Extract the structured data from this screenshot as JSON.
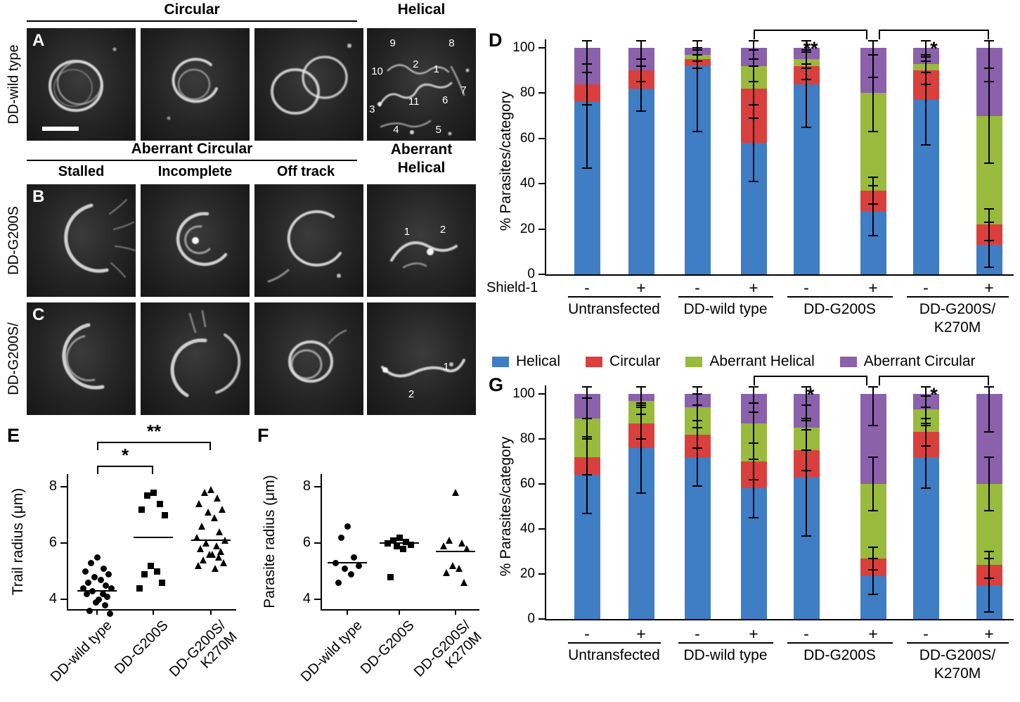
{
  "micrographs": {
    "headers": {
      "circular": "Circular",
      "helical": "Helical",
      "aberrant_circular": "Aberrant Circular",
      "aberrant_helical": "Aberrant\nHelical",
      "stalled": "Stalled",
      "incomplete": "Incomplete",
      "off_track": "Off track"
    },
    "rows": [
      {
        "panel_label": "A",
        "row_label": "DD-wild type",
        "trail_numbers": [
          {
            "n": "9",
            "x": 21,
            "y": 8
          },
          {
            "n": "2",
            "x": 42,
            "y": 27
          },
          {
            "n": "1",
            "x": 61,
            "y": 31
          },
          {
            "n": "8",
            "x": 75,
            "y": 8
          },
          {
            "n": "10",
            "x": 4,
            "y": 33
          },
          {
            "n": "7",
            "x": 86,
            "y": 50
          },
          {
            "n": "3",
            "x": 2,
            "y": 67
          },
          {
            "n": "11",
            "x": 38,
            "y": 60
          },
          {
            "n": "6",
            "x": 69,
            "y": 59
          },
          {
            "n": "4",
            "x": 24,
            "y": 85
          },
          {
            "n": "5",
            "x": 63,
            "y": 85
          }
        ]
      },
      {
        "panel_label": "B",
        "row_label": "DD-G200S",
        "trail_numbers": [
          {
            "n": "1",
            "x": 34,
            "y": 37
          },
          {
            "n": "2",
            "x": 67,
            "y": 35
          }
        ]
      },
      {
        "panel_label": "C",
        "row_label": "DD-G200S/",
        "trail_numbers": [
          {
            "n": "1",
            "x": 70,
            "y": 52
          },
          {
            "n": "2",
            "x": 38,
            "y": 76
          }
        ]
      }
    ]
  },
  "legend": {
    "items": [
      {
        "label": "Helical",
        "color": "#3f7dc4"
      },
      {
        "label": "Circular",
        "color": "#d9403d"
      },
      {
        "label": "Aberrant Helical",
        "color": "#99ba3c"
      },
      {
        "label": "Aberrant Circular",
        "color": "#8a61aa"
      }
    ]
  },
  "chart_data": [
    {
      "id": "D",
      "panel_label": "D",
      "type": "bar",
      "stacked": true,
      "ylabel": "% Parasites/category",
      "ylim": [
        0,
        100
      ],
      "yticks": [
        0,
        20,
        40,
        60,
        80,
        100
      ],
      "shield_label": "Shield-1",
      "conditions": [
        "-",
        "+"
      ],
      "groups": [
        "Untransfected",
        "DD-wild type",
        "DD-G200S",
        "DD-G200S/\nK270M"
      ],
      "series": [
        {
          "name": "Helical",
          "color": "#3f7dc4",
          "values": [
            76,
            82,
            92,
            58,
            84,
            28,
            77,
            13
          ],
          "errors": [
            29,
            10,
            29,
            17,
            19,
            11,
            20,
            10
          ]
        },
        {
          "name": "Circular",
          "color": "#d9403d",
          "values": [
            8,
            8,
            3,
            24,
            8,
            9,
            13,
            9
          ],
          "errors": [
            9,
            5,
            4,
            13,
            6,
            6,
            6,
            7
          ]
        },
        {
          "name": "Aberrant Helical",
          "color": "#99ba3c",
          "values": [
            0,
            0,
            2,
            10,
            3,
            43,
            3,
            48
          ],
          "errors": [
            0,
            0,
            3,
            7,
            4,
            17,
            4,
            21
          ]
        },
        {
          "name": "Aberrant Circular",
          "color": "#8a61aa",
          "values": [
            16,
            10,
            3,
            8,
            5,
            20,
            7,
            30
          ],
          "errors": [
            11,
            8,
            3,
            8,
            7,
            13,
            6,
            15
          ]
        }
      ],
      "significance": [
        {
          "label": "**",
          "from_bar": 3,
          "to_bar": 5
        },
        {
          "label": "*",
          "from_bar": 5,
          "to_bar": 7
        }
      ]
    },
    {
      "id": "E",
      "panel_label": "E",
      "type": "scatter",
      "ylabel": "Trail radius (μm)",
      "ylim": [
        3.6,
        8.4
      ],
      "yticks": [
        4,
        6,
        8
      ],
      "categories": [
        "DD-wild type",
        "DD-G200S",
        "DD-G200S/\nK270M"
      ],
      "points": [
        [
          5.5,
          5.3,
          5.1,
          5.0,
          4.9,
          4.8,
          4.7,
          4.6,
          4.5,
          4.4,
          4.4,
          4.3,
          4.2,
          4.2,
          4.1,
          4.0,
          3.9,
          3.8,
          3.6,
          3.5
        ],
        [
          7.8,
          7.7,
          7.4,
          7.2,
          7.0,
          5.2,
          5.0,
          4.9,
          4.6,
          4.4
        ],
        [
          7.9,
          7.8,
          7.6,
          7.4,
          7.2,
          7.1,
          6.9,
          6.6,
          6.4,
          6.2,
          6.1,
          6.0,
          5.9,
          5.8,
          5.7,
          5.6,
          5.6,
          5.5,
          5.4,
          5.3,
          5.2,
          5.1
        ]
      ],
      "means": [
        4.3,
        6.2,
        6.1
      ],
      "significance": [
        {
          "label": "*",
          "from": 0,
          "to": 1
        },
        {
          "label": "**",
          "from": 0,
          "to": 2
        }
      ]
    },
    {
      "id": "F",
      "panel_label": "F",
      "type": "scatter",
      "ylabel": "Parasite radius (μm)",
      "ylim": [
        3.6,
        8.4
      ],
      "yticks": [
        4,
        6,
        8
      ],
      "categories": [
        "DD-wild type",
        "DD-G200S",
        "DD-G200S/\nK270M"
      ],
      "points": [
        [
          6.6,
          6.2,
          5.5,
          5.3,
          5.2,
          5.1,
          4.9,
          4.6
        ],
        [
          6.2,
          6.1,
          6.05,
          6.0,
          5.95,
          5.9,
          5.8,
          4.8
        ],
        [
          7.8,
          6.1,
          6.0,
          5.9,
          5.8,
          5.2,
          5.1,
          4.95,
          4.6
        ]
      ],
      "means": [
        5.3,
        6.0,
        5.7
      ],
      "significance": []
    },
    {
      "id": "G",
      "panel_label": "G",
      "type": "bar",
      "stacked": true,
      "ylabel": "% Parasites/category",
      "ylim": [
        0,
        100
      ],
      "yticks": [
        0,
        20,
        40,
        60,
        80,
        100
      ],
      "conditions": [
        "-",
        "+"
      ],
      "groups": [
        "Untransfected",
        "DD-wild type",
        "DD-G200S",
        "DD-G200S/\nK270M"
      ],
      "series": [
        {
          "name": "Helical",
          "color": "#3f7dc4",
          "values": [
            64,
            76,
            72,
            58,
            63,
            19,
            72,
            15
          ],
          "errors": [
            17,
            20,
            13,
            13,
            26,
            8,
            14,
            12
          ]
        },
        {
          "name": "Circular",
          "color": "#d9403d",
          "values": [
            8,
            11,
            10,
            12,
            12,
            8,
            11,
            9
          ],
          "errors": [
            8,
            7,
            6,
            8,
            9,
            5,
            6,
            6
          ]
        },
        {
          "name": "Aberrant Helical",
          "color": "#99ba3c",
          "values": [
            17,
            10,
            12,
            17,
            10,
            33,
            10,
            36
          ],
          "errors": [
            9,
            6,
            6,
            9,
            10,
            12,
            6,
            12
          ]
        },
        {
          "name": "Aberrant Circular",
          "color": "#8a61aa",
          "values": [
            11,
            3,
            6,
            13,
            15,
            40,
            7,
            40
          ],
          "errors": [
            11,
            5,
            5,
            8,
            12,
            14,
            6,
            17
          ]
        }
      ],
      "significance": [
        {
          "label": "*",
          "from_bar": 3,
          "to_bar": 5
        },
        {
          "label": "*",
          "from_bar": 5,
          "to_bar": 7
        }
      ]
    }
  ]
}
